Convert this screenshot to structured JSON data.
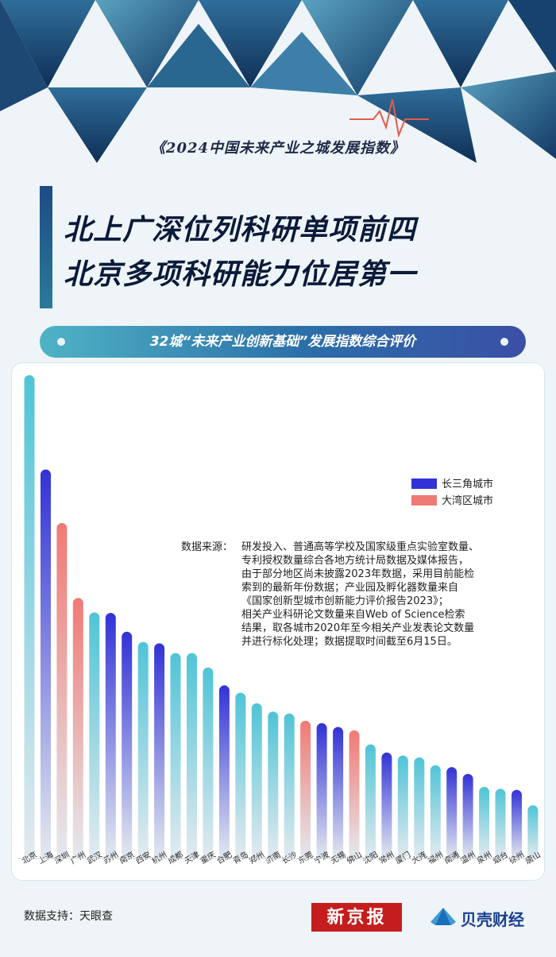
{
  "subtitle": "《2024中国未来产业之城发展指数》",
  "headline": [
    "北上广深位列科研单项前四",
    "北京多项科研能力位居第一"
  ],
  "section_title": "32城“未来产业创新基础”发展指数综合评价",
  "legend": [
    {
      "label": "长三角城市",
      "color": "#3232d6"
    },
    {
      "label": "大湾区城市",
      "color": "#f07a74"
    }
  ],
  "note_label": "数据来源：",
  "note_lines": [
    "研发投入、普通高等学校及国家级重点实验室数量、",
    "专利授权数量综合各地方统计局数据及媒体报告，",
    "由于部分地区尚未披露2023年数据，采用目前能检",
    "索到的最新年份数据；产业园及孵化器数量来自",
    "《国家创新型城市创新能力评价报告2023》；",
    "相关产业科研论文数量来自Web of Science检索",
    "结果，取各城市2020年至今相关产业发表论文数量",
    "并进行标化处理；数据提取时间截至6月15日。"
  ],
  "support": "数据支持：天眼查",
  "logo_xjb": "新京报",
  "logo_bk": "贝壳财经",
  "colors": {
    "other": "#4fc4d6",
    "yrd": "#3232d6",
    "gba": "#f07a74"
  },
  "chart_data": {
    "type": "bar",
    "categories": [
      "北京",
      "上海",
      "深圳",
      "广州",
      "武汉",
      "苏州",
      "南京",
      "西安",
      "杭州",
      "成都",
      "天津",
      "重庆",
      "合肥",
      "青岛",
      "郑州",
      "济南",
      "长沙",
      "东莞",
      "宁波",
      "无锡",
      "佛山",
      "沈阳",
      "常州",
      "厦门",
      "大连",
      "福州",
      "南通",
      "温州",
      "泉州",
      "烟台",
      "徐州",
      "唐山"
    ],
    "values": [
      100,
      80.5,
      69.4,
      53.9,
      50.9,
      50.8,
      46.9,
      44.8,
      44.5,
      42.5,
      42.5,
      39.5,
      35.8,
      34.3,
      32.1,
      30.4,
      30.0,
      28.5,
      28.0,
      27.2,
      26.5,
      23.6,
      21.9,
      21.3,
      20.9,
      19.3,
      18.9,
      17.5,
      14.8,
      14.4,
      14.2,
      11.0
    ],
    "groups": [
      "other",
      "yrd",
      "gba",
      "gba",
      "other",
      "yrd",
      "yrd",
      "other",
      "yrd",
      "other",
      "other",
      "other",
      "yrd",
      "other",
      "other",
      "other",
      "other",
      "gba",
      "yrd",
      "yrd",
      "gba",
      "other",
      "yrd",
      "other",
      "other",
      "other",
      "yrd",
      "yrd",
      "other",
      "other",
      "yrd",
      "other"
    ],
    "series_legend": [
      "长三角城市",
      "大湾区城市"
    ],
    "ylim": [
      0,
      100
    ],
    "grid": false
  }
}
